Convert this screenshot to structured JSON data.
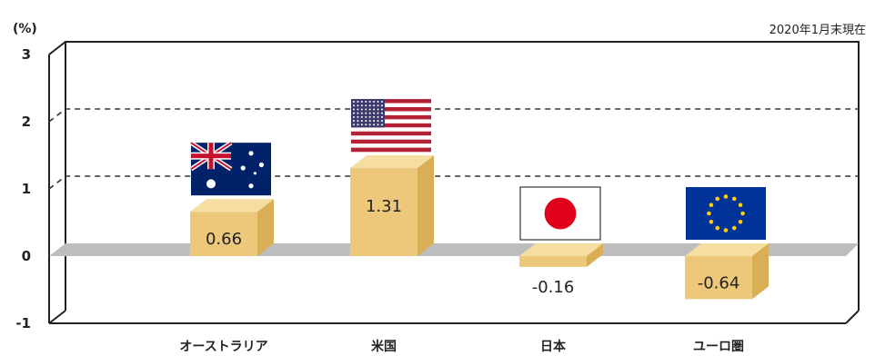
{
  "unit_label": "(%)",
  "note": "2020年1月末現在",
  "colors": {
    "bar_front": "#EDC87A",
    "bar_top": "#F6DDA1",
    "bar_side": "#D9AE55",
    "floor": "#BDBDBD"
  },
  "chart_data": {
    "type": "bar",
    "categories": [
      "オーストラリア",
      "米国",
      "日本",
      "ユーロ圏"
    ],
    "values": [
      0.66,
      1.31,
      -0.16,
      -0.64
    ],
    "data_labels": [
      "0.66",
      "1.31",
      "-0.16",
      "-0.64"
    ],
    "flags": [
      "australia-flag",
      "us-flag",
      "japan-flag",
      "eu-flag"
    ],
    "ylim": [
      -1,
      3
    ],
    "yticks": [
      "-1",
      "0",
      "1",
      "2",
      "3"
    ],
    "grid": true
  }
}
